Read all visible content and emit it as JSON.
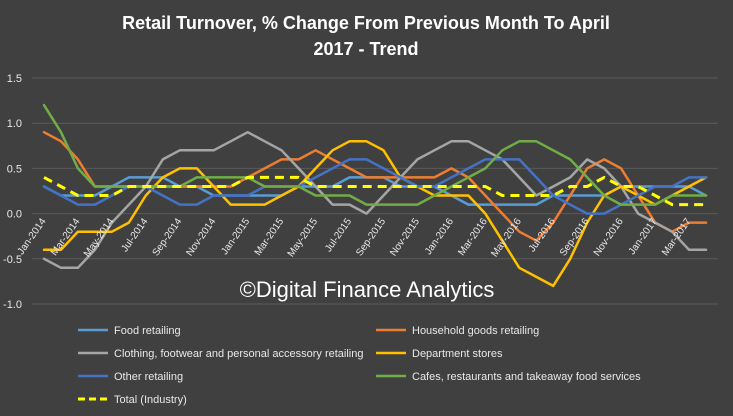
{
  "chart_data": {
    "type": "line",
    "title_line1": "Retail Turnover, % Change From Previous Month To April",
    "title_line2": "2017 - Trend",
    "watermark": "©Digital Finance Analytics",
    "ylim": [
      -1.0,
      1.5
    ],
    "yticks": [
      "-1.0",
      "-0.5",
      "0.0",
      "0.5",
      "1.0",
      "1.5"
    ],
    "ytick_values": [
      -1.0,
      -0.5,
      0.0,
      0.5,
      1.0,
      1.5
    ],
    "grid": "horizontal",
    "legend_position": "bottom",
    "x_tick_labels": [
      "Jan-2014",
      "Mar-2014",
      "May-2014",
      "Jul-2014",
      "Sep-2014",
      "Nov-2014",
      "Jan-2015",
      "Mar-2015",
      "May-2015",
      "Jul-2015",
      "Sep-2015",
      "Nov-2015",
      "Jan-2016",
      "Mar-2016",
      "May-2016",
      "Jul-2016",
      "Sep-2016",
      "Nov-2016",
      "Jan-2017",
      "Mar-2017"
    ],
    "x_tick_index": [
      0,
      2,
      4,
      6,
      8,
      10,
      12,
      14,
      16,
      18,
      20,
      22,
      24,
      26,
      28,
      30,
      32,
      34,
      36,
      38
    ],
    "n_points": 40,
    "series": [
      {
        "name": "Food retailing",
        "color": "#5b9bd5",
        "dashed": false,
        "values": [
          0.3,
          0.2,
          0.2,
          0.2,
          0.3,
          0.4,
          0.4,
          0.4,
          0.3,
          0.3,
          0.2,
          0.2,
          0.2,
          0.2,
          0.2,
          0.3,
          0.3,
          0.3,
          0.4,
          0.4,
          0.4,
          0.3,
          0.3,
          0.3,
          0.2,
          0.1,
          0.1,
          0.1,
          0.1,
          0.1,
          0.2,
          0.2,
          0.2,
          0.2,
          0.3,
          0.3,
          0.3,
          0.3,
          0.3,
          0.2
        ]
      },
      {
        "name": "Household goods retailing",
        "color": "#ed7d31",
        "dashed": false,
        "values": [
          0.9,
          0.8,
          0.6,
          0.3,
          0.3,
          0.3,
          0.3,
          0.3,
          0.3,
          0.3,
          0.3,
          0.3,
          0.4,
          0.5,
          0.6,
          0.6,
          0.7,
          0.6,
          0.5,
          0.4,
          0.4,
          0.4,
          0.4,
          0.4,
          0.5,
          0.4,
          0.2,
          0.0,
          -0.2,
          -0.3,
          -0.1,
          0.2,
          0.5,
          0.6,
          0.5,
          0.2,
          -0.1,
          -0.2,
          -0.1,
          -0.1
        ]
      },
      {
        "name": "Clothing, footwear and personal accessory retailing",
        "color": "#a5a5a5",
        "dashed": false,
        "values": [
          -0.5,
          -0.6,
          -0.6,
          -0.4,
          -0.1,
          0.1,
          0.3,
          0.6,
          0.7,
          0.7,
          0.7,
          0.8,
          0.9,
          0.8,
          0.7,
          0.5,
          0.3,
          0.1,
          0.1,
          0.0,
          0.2,
          0.4,
          0.6,
          0.7,
          0.8,
          0.8,
          0.7,
          0.6,
          0.4,
          0.2,
          0.3,
          0.4,
          0.6,
          0.5,
          0.3,
          0.0,
          -0.1,
          -0.2,
          -0.4,
          -0.4
        ]
      },
      {
        "name": "Department stores",
        "color": "#ffc000",
        "dashed": false,
        "values": [
          -0.4,
          -0.4,
          -0.2,
          -0.2,
          -0.2,
          -0.1,
          0.2,
          0.4,
          0.5,
          0.5,
          0.3,
          0.1,
          0.1,
          0.1,
          0.2,
          0.3,
          0.5,
          0.7,
          0.8,
          0.8,
          0.7,
          0.4,
          0.3,
          0.2,
          0.2,
          0.2,
          0.0,
          -0.3,
          -0.6,
          -0.7,
          -0.8,
          -0.5,
          -0.1,
          0.2,
          0.3,
          0.2,
          0.1,
          0.2,
          0.3,
          0.4
        ]
      },
      {
        "name": "Other retailing",
        "color": "#4472c4",
        "dashed": false,
        "values": [
          0.3,
          0.2,
          0.1,
          0.1,
          0.2,
          0.3,
          0.3,
          0.2,
          0.1,
          0.1,
          0.2,
          0.2,
          0.2,
          0.3,
          0.3,
          0.3,
          0.4,
          0.5,
          0.6,
          0.6,
          0.5,
          0.4,
          0.3,
          0.3,
          0.4,
          0.5,
          0.6,
          0.6,
          0.6,
          0.4,
          0.2,
          0.1,
          0.0,
          0.0,
          0.1,
          0.2,
          0.3,
          0.3,
          0.4,
          0.4
        ]
      },
      {
        "name": "Cafes, restaurants and takeaway food services",
        "color": "#70ad47",
        "dashed": false,
        "values": [
          1.2,
          0.9,
          0.5,
          0.3,
          0.3,
          0.3,
          0.3,
          0.3,
          0.3,
          0.4,
          0.4,
          0.4,
          0.4,
          0.3,
          0.3,
          0.3,
          0.2,
          0.2,
          0.2,
          0.1,
          0.1,
          0.1,
          0.1,
          0.2,
          0.3,
          0.4,
          0.5,
          0.7,
          0.8,
          0.8,
          0.7,
          0.6,
          0.4,
          0.2,
          0.1,
          0.1,
          0.1,
          0.2,
          0.2,
          0.2
        ]
      },
      {
        "name": "Total (Industry)",
        "color": "#ffff00",
        "dashed": true,
        "values": [
          0.4,
          0.3,
          0.2,
          0.2,
          0.2,
          0.3,
          0.3,
          0.3,
          0.3,
          0.3,
          0.3,
          0.3,
          0.4,
          0.4,
          0.4,
          0.4,
          0.3,
          0.3,
          0.3,
          0.3,
          0.3,
          0.3,
          0.3,
          0.3,
          0.3,
          0.3,
          0.3,
          0.2,
          0.2,
          0.2,
          0.2,
          0.3,
          0.3,
          0.4,
          0.3,
          0.3,
          0.2,
          0.1,
          0.1,
          0.1
        ]
      }
    ]
  }
}
